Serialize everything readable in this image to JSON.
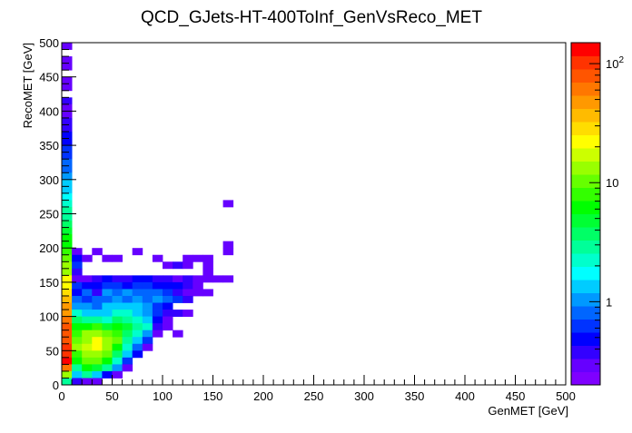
{
  "chart_data": {
    "type": "heatmap",
    "title": "QCD_GJets-HT-400ToInf_GenVsReco_MET",
    "xlabel": "GenMET  [GeV]",
    "ylabel": "RecoMET  [GeV]",
    "xlim": [
      0,
      500
    ],
    "ylim": [
      0,
      500
    ],
    "bin_width": 10,
    "x_ticks": [
      "0",
      "50",
      "100",
      "150",
      "200",
      "250",
      "300",
      "350",
      "400",
      "450",
      "500"
    ],
    "y_ticks": [
      "0",
      "50",
      "100",
      "150",
      "200",
      "250",
      "300",
      "350",
      "400",
      "450",
      "500"
    ],
    "z_scale": "log",
    "zlim": [
      0.2,
      150
    ],
    "z_ticks": [
      {
        "value": 1,
        "label": "1"
      },
      {
        "value": 10,
        "label": "10"
      },
      {
        "value": 100,
        "label": "10",
        "exp": "2"
      }
    ],
    "palette": [
      "#7f00ff",
      "#6600ff",
      "#3300ff",
      "#0000ff",
      "#0033ff",
      "#0066ff",
      "#0099ff",
      "#00ccff",
      "#00ffff",
      "#00ffcc",
      "#00ff99",
      "#00ff66",
      "#00ff33",
      "#00ff00",
      "#33ff00",
      "#66ff00",
      "#99ff00",
      "#ccff00",
      "#ffff00",
      "#ffdd00",
      "#ffbb00",
      "#ff9900",
      "#ff7700",
      "#ff5500",
      "#ff3300",
      "#ff0000"
    ],
    "bins": [
      [
        0,
        490,
        0.3
      ],
      [
        0,
        470,
        0.3
      ],
      [
        0,
        460,
        0.3
      ],
      [
        0,
        440,
        0.3
      ],
      [
        0,
        430,
        0.3
      ],
      [
        0,
        410,
        0.35
      ],
      [
        0,
        400,
        0.3
      ],
      [
        0,
        390,
        0.3
      ],
      [
        0,
        380,
        0.35
      ],
      [
        0,
        370,
        0.4
      ],
      [
        0,
        360,
        0.45
      ],
      [
        0,
        350,
        0.5
      ],
      [
        0,
        340,
        0.6
      ],
      [
        0,
        330,
        0.7
      ],
      [
        0,
        320,
        0.8
      ],
      [
        0,
        310,
        0.9
      ],
      [
        0,
        300,
        1
      ],
      [
        0,
        290,
        1.2
      ],
      [
        0,
        280,
        1.5
      ],
      [
        0,
        270,
        1.8
      ],
      [
        0,
        260,
        2.2
      ],
      [
        0,
        250,
        2.7
      ],
      [
        0,
        240,
        3.2
      ],
      [
        0,
        230,
        3.8
      ],
      [
        0,
        220,
        4.5
      ],
      [
        0,
        210,
        5.5
      ],
      [
        0,
        200,
        6.5
      ],
      [
        0,
        190,
        8
      ],
      [
        0,
        180,
        10
      ],
      [
        0,
        170,
        12
      ],
      [
        0,
        160,
        15
      ],
      [
        0,
        150,
        20
      ],
      [
        0,
        140,
        24
      ],
      [
        0,
        130,
        28
      ],
      [
        0,
        120,
        35
      ],
      [
        0,
        110,
        42
      ],
      [
        0,
        100,
        50
      ],
      [
        0,
        90,
        60
      ],
      [
        0,
        80,
        70
      ],
      [
        0,
        70,
        80
      ],
      [
        0,
        60,
        90
      ],
      [
        0,
        50,
        100
      ],
      [
        0,
        40,
        110
      ],
      [
        0,
        30,
        120
      ],
      [
        0,
        20,
        60
      ],
      [
        0,
        10,
        15
      ],
      [
        0,
        0,
        3
      ],
      [
        10,
        190,
        0.3
      ],
      [
        10,
        180,
        0.5
      ],
      [
        10,
        170,
        0.6
      ],
      [
        10,
        160,
        0.4
      ],
      [
        10,
        150,
        0.3
      ],
      [
        10,
        140,
        0.6
      ],
      [
        10,
        130,
        0.5
      ],
      [
        10,
        120,
        0.8
      ],
      [
        10,
        110,
        1
      ],
      [
        10,
        100,
        2
      ],
      [
        10,
        90,
        4
      ],
      [
        10,
        80,
        6
      ],
      [
        10,
        70,
        8
      ],
      [
        10,
        60,
        10
      ],
      [
        10,
        50,
        12
      ],
      [
        10,
        40,
        8
      ],
      [
        10,
        30,
        6
      ],
      [
        10,
        20,
        3
      ],
      [
        10,
        10,
        1.2
      ],
      [
        10,
        0,
        0.4
      ],
      [
        20,
        180,
        0.3
      ],
      [
        20,
        150,
        0.3
      ],
      [
        20,
        140,
        0.5
      ],
      [
        20,
        130,
        0.8
      ],
      [
        20,
        120,
        0.6
      ],
      [
        20,
        110,
        1
      ],
      [
        20,
        100,
        1.5
      ],
      [
        20,
        90,
        3
      ],
      [
        20,
        80,
        6
      ],
      [
        20,
        70,
        12
      ],
      [
        20,
        60,
        15
      ],
      [
        20,
        50,
        18
      ],
      [
        20,
        40,
        14
      ],
      [
        20,
        30,
        10
      ],
      [
        20,
        20,
        6
      ],
      [
        20,
        10,
        3
      ],
      [
        20,
        0,
        0.3
      ],
      [
        30,
        190,
        0.3
      ],
      [
        30,
        150,
        0.35
      ],
      [
        30,
        140,
        0.5
      ],
      [
        30,
        130,
        0.4
      ],
      [
        30,
        120,
        0.8
      ],
      [
        30,
        110,
        0.9
      ],
      [
        30,
        100,
        1.2
      ],
      [
        30,
        90,
        3
      ],
      [
        30,
        80,
        8
      ],
      [
        30,
        70,
        15
      ],
      [
        30,
        60,
        20
      ],
      [
        30,
        50,
        22
      ],
      [
        30,
        40,
        15
      ],
      [
        30,
        30,
        10
      ],
      [
        30,
        20,
        5
      ],
      [
        30,
        10,
        1.2
      ],
      [
        30,
        0,
        0.3
      ],
      [
        40,
        180,
        0.3
      ],
      [
        40,
        150,
        0.5
      ],
      [
        40,
        140,
        0.6
      ],
      [
        40,
        130,
        1
      ],
      [
        40,
        120,
        0.8
      ],
      [
        40,
        110,
        1.5
      ],
      [
        40,
        100,
        1.2
      ],
      [
        40,
        90,
        2.5
      ],
      [
        40,
        80,
        5
      ],
      [
        40,
        70,
        10
      ],
      [
        40,
        60,
        15
      ],
      [
        40,
        50,
        12
      ],
      [
        40,
        40,
        10
      ],
      [
        40,
        30,
        6
      ],
      [
        40,
        20,
        3
      ],
      [
        40,
        10,
        0.5
      ],
      [
        50,
        180,
        0.3
      ],
      [
        50,
        150,
        0.35
      ],
      [
        50,
        140,
        0.6
      ],
      [
        50,
        130,
        0.8
      ],
      [
        50,
        120,
        1
      ],
      [
        50,
        110,
        1.2
      ],
      [
        50,
        100,
        2
      ],
      [
        50,
        90,
        4
      ],
      [
        50,
        80,
        6
      ],
      [
        50,
        70,
        8
      ],
      [
        50,
        60,
        10
      ],
      [
        50,
        50,
        6
      ],
      [
        50,
        40,
        4
      ],
      [
        50,
        30,
        2
      ],
      [
        50,
        20,
        1
      ],
      [
        50,
        10,
        0.3
      ],
      [
        60,
        150,
        0.4
      ],
      [
        60,
        140,
        0.5
      ],
      [
        60,
        130,
        1
      ],
      [
        60,
        120,
        0.8
      ],
      [
        60,
        110,
        1.5
      ],
      [
        60,
        100,
        2
      ],
      [
        60,
        90,
        3
      ],
      [
        60,
        80,
        5
      ],
      [
        60,
        70,
        4
      ],
      [
        60,
        60,
        3
      ],
      [
        60,
        50,
        2
      ],
      [
        60,
        40,
        1.2
      ],
      [
        60,
        30,
        0.6
      ],
      [
        60,
        20,
        0.3
      ],
      [
        70,
        190,
        0.3
      ],
      [
        70,
        150,
        0.45
      ],
      [
        70,
        140,
        0.6
      ],
      [
        70,
        130,
        0.9
      ],
      [
        70,
        120,
        1
      ],
      [
        70,
        110,
        1.2
      ],
      [
        70,
        100,
        1.5
      ],
      [
        70,
        90,
        2
      ],
      [
        70,
        80,
        3
      ],
      [
        70,
        70,
        2
      ],
      [
        70,
        60,
        1.2
      ],
      [
        70,
        50,
        0.8
      ],
      [
        70,
        40,
        0.5
      ],
      [
        80,
        150,
        0.5
      ],
      [
        80,
        140,
        0.6
      ],
      [
        80,
        130,
        0.8
      ],
      [
        80,
        120,
        0.9
      ],
      [
        80,
        110,
        1
      ],
      [
        80,
        100,
        1
      ],
      [
        80,
        90,
        1.5
      ],
      [
        80,
        80,
        2
      ],
      [
        80,
        70,
        1
      ],
      [
        80,
        60,
        0.6
      ],
      [
        80,
        50,
        0.3
      ],
      [
        90,
        180,
        0.3
      ],
      [
        90,
        150,
        0.35
      ],
      [
        90,
        140,
        0.5
      ],
      [
        90,
        130,
        0.8
      ],
      [
        90,
        120,
        1
      ],
      [
        90,
        110,
        0.7
      ],
      [
        90,
        100,
        0.6
      ],
      [
        90,
        90,
        0.5
      ],
      [
        90,
        80,
        0.35
      ],
      [
        90,
        70,
        0.3
      ],
      [
        100,
        170,
        0.3
      ],
      [
        100,
        150,
        0.4
      ],
      [
        100,
        140,
        0.5
      ],
      [
        100,
        130,
        0.6
      ],
      [
        100,
        120,
        0.8
      ],
      [
        100,
        110,
        0.5
      ],
      [
        100,
        100,
        0.4
      ],
      [
        100,
        90,
        0.3
      ],
      [
        100,
        80,
        0.3
      ],
      [
        110,
        170,
        0.35
      ],
      [
        110,
        150,
        0.3
      ],
      [
        110,
        140,
        0.5
      ],
      [
        110,
        130,
        0.4
      ],
      [
        110,
        120,
        0.6
      ],
      [
        110,
        100,
        0.4
      ],
      [
        110,
        70,
        0.3
      ],
      [
        120,
        180,
        0.3
      ],
      [
        120,
        170,
        0.3
      ],
      [
        120,
        150,
        0.35
      ],
      [
        120,
        140,
        0.4
      ],
      [
        120,
        130,
        0.3
      ],
      [
        120,
        120,
        0.4
      ],
      [
        120,
        100,
        0.3
      ],
      [
        130,
        180,
        0.3
      ],
      [
        130,
        150,
        0.3
      ],
      [
        130,
        140,
        0.3
      ],
      [
        130,
        130,
        0.3
      ],
      [
        140,
        180,
        0.3
      ],
      [
        140,
        170,
        0.3
      ],
      [
        140,
        160,
        0.3
      ],
      [
        140,
        150,
        0.3
      ],
      [
        140,
        130,
        0.3
      ],
      [
        150,
        150,
        0.3
      ],
      [
        160,
        200,
        0.3
      ],
      [
        160,
        190,
        0.3
      ],
      [
        160,
        150,
        0.3
      ],
      [
        160,
        260,
        0.3
      ]
    ]
  }
}
